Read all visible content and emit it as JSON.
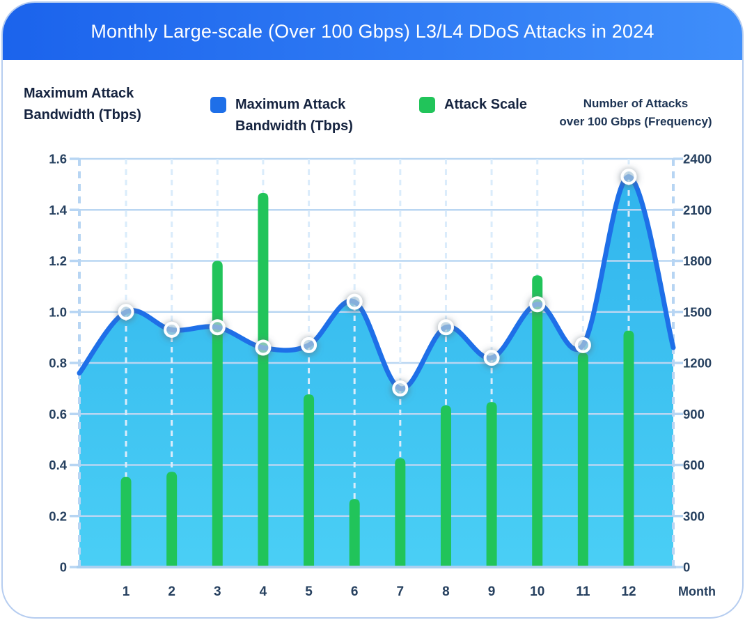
{
  "header": {
    "title": "Monthly Large-scale (Over 100 Gbps) L3/L4 DDoS Attacks in 2024"
  },
  "ui": {
    "right_axis_title_lines": [
      "Number of Attacks",
      "over 100 Gbps (Frequency)"
    ]
  },
  "colors": {
    "header_gradient": [
      "#1b63ec",
      "#3f8efa"
    ],
    "card_border": "#b6cdf0",
    "h_grid": "#b9d6f2",
    "v_grid_dash": "#daecfb",
    "axis_dash": "#b7d5f3",
    "x_axis": "#abd0f0",
    "tick_text": "#26405f",
    "area_top": "#2ab2ec",
    "area_bottom": "#44cdf5",
    "line_blue": "#1e6fe8",
    "bar_green": "#21c45a",
    "marker_fill": "rgba(205,235,252,0.45)",
    "marker_stroke": "#ffffff"
  },
  "chart_data": {
    "type": "combo (smoothed area line + bars)",
    "title": "Monthly Large-scale (Over 100 Gbps) L3/L4 DDoS Attacks in 2024",
    "categories": [
      "1",
      "2",
      "3",
      "4",
      "5",
      "6",
      "7",
      "8",
      "9",
      "10",
      "11",
      "12"
    ],
    "x_axis_label": "Month",
    "series": [
      {
        "name": "Maximum Attack Bandwidth (Tbps)",
        "type": "line-area",
        "y_axis": "left",
        "color": "#1e6fe8",
        "marker": "circle-white-ring",
        "values": [
          1.0,
          0.93,
          0.94,
          0.86,
          0.87,
          1.04,
          0.7,
          0.94,
          0.82,
          1.03,
          0.87,
          1.53
        ],
        "edge_anchors": {
          "left": 0.76,
          "right": 0.86
        }
      },
      {
        "name": "Attack Scale",
        "type": "bar",
        "y_axis": "right",
        "color": "#21c45a",
        "values": [
          530,
          560,
          1800,
          2200,
          1015,
          400,
          640,
          950,
          970,
          1715,
          1260,
          1390
        ]
      }
    ],
    "y_left": {
      "title": "Maximum Attack Bandwidth (Tbps)",
      "min": 0,
      "max": 1.6,
      "tick_step": 0.2,
      "ticks": [
        "1.6",
        "1.4",
        "1.2",
        "1.0",
        "0.8",
        "0.6",
        "0.4",
        "0.2",
        "0"
      ]
    },
    "y_right": {
      "title": "Number of Attacks over 100 Gbps (Frequency)",
      "min": 0,
      "max": 2400,
      "tick_step": 300,
      "ticks": [
        "2400",
        "2100",
        "1800",
        "1500",
        "1200",
        "900",
        "600",
        "300",
        "0"
      ]
    },
    "grid": {
      "horizontal": "solid",
      "vertical": "dashed"
    },
    "legend_position": "top"
  }
}
